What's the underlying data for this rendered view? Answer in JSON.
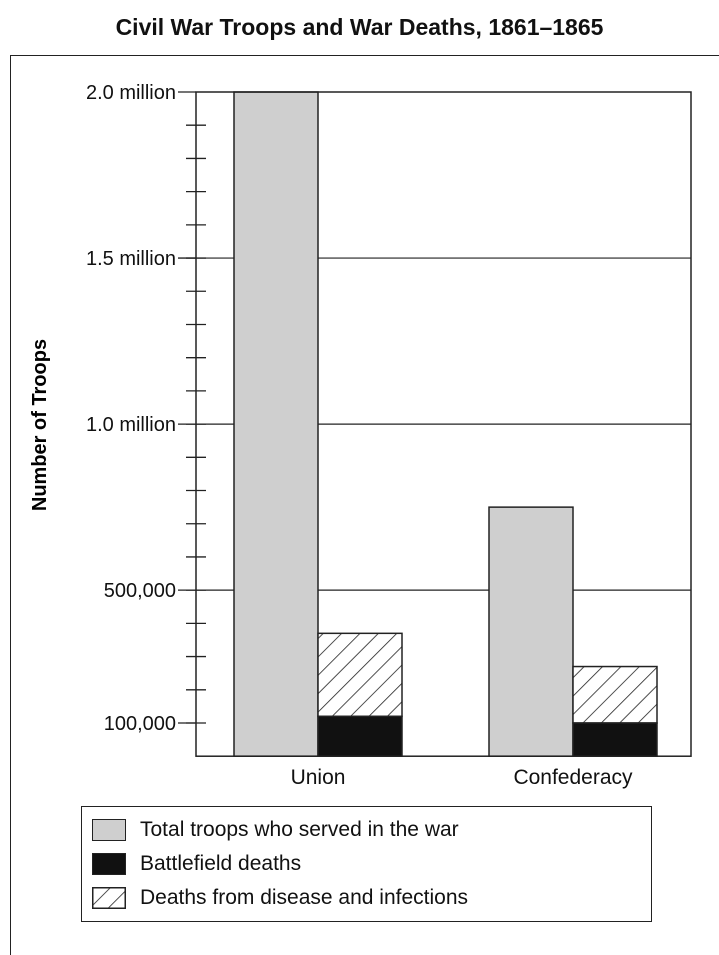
{
  "chart_data": {
    "type": "bar",
    "title": "Civil War Troops and War Deaths, 1861–1865",
    "ylabel": "Number of Troops",
    "xlabel": "",
    "categories": [
      "Union",
      "Confederacy"
    ],
    "ylim": [
      0,
      2000000
    ],
    "yticks": [
      100000,
      500000,
      1000000,
      1500000,
      2000000
    ],
    "ytick_labels": [
      "100,000",
      "500,000",
      "1.0  million",
      "1.5 million",
      "2.0 million"
    ],
    "minor_tick_step": 100000,
    "grid": true,
    "legend_position": "bottom",
    "series": [
      {
        "name": "Total troops who served in the war",
        "values": [
          2000000,
          750000
        ],
        "style": "solid",
        "color": "#cfcfcf"
      },
      {
        "name": "Battlefield deaths",
        "values": [
          120000,
          100000
        ],
        "style": "solid",
        "color": "#111111"
      },
      {
        "name": "Deaths from disease and infections",
        "values": [
          250000,
          170000
        ],
        "style": "hatched",
        "color": "#ffffff"
      }
    ]
  }
}
